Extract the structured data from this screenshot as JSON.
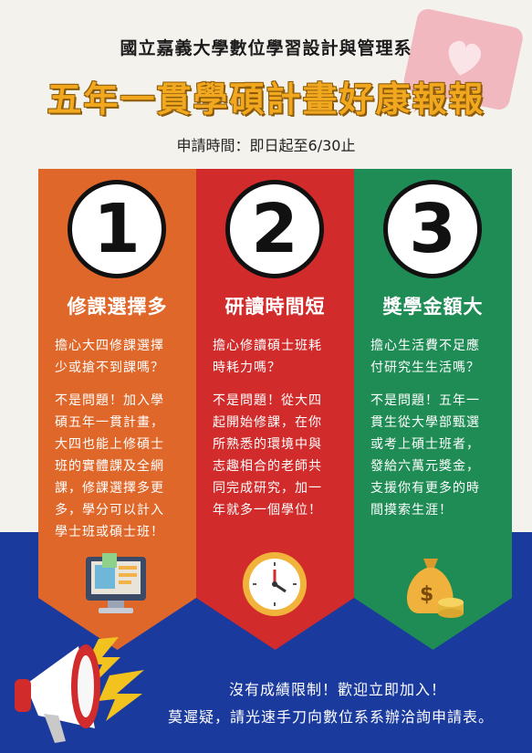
{
  "header": {
    "department": "國立嘉義大學數位學習設計與管理系",
    "title": "五年一貫學碩計畫好康報報",
    "period": "申請時間：即日起至6/30止"
  },
  "colors": {
    "orange": "#e0672a",
    "red": "#d12b2b",
    "green": "#1f8c56",
    "blue": "#1a3a9e",
    "title_yellow": "#f2a81e"
  },
  "columns": [
    {
      "number": "1",
      "title": "修課選擇多",
      "question": "擔心大四修課選擇\n少或搶不到課嗎？",
      "answer": "不是問題！加入學\n碩五年一貫計畫，\n大四也能上修碩士\n班的實體課及全網\n課，修課選擇多更\n多，學分可以計入\n學士班或碩士班！",
      "icon": "computer-icon"
    },
    {
      "number": "2",
      "title": "研讀時間短",
      "question": "擔心修讀碩士班耗\n時耗力嗎？",
      "answer": "不是問題！從大四\n起開始修課，在你\n所熟悉的環境中與\n志趣相合的老師共\n同完成研究，加一\n年就多一個學位！",
      "icon": "clock-icon"
    },
    {
      "number": "3",
      "title": "獎學金額大",
      "question": "擔心生活費不足應\n付研究生生活嗎？",
      "answer": "不是問題！五年一\n貫生從大學部甄選\n或考上碩士班者，\n發給六萬元獎金，\n支援你有更多的時\n間摸索生涯！",
      "icon": "money-bag-icon"
    }
  ],
  "footer": {
    "line1": "沒有成績限制！歡迎立即加入！",
    "line2": "莫遲疑，請光速手刀向數位系系辦洽詢申請表。"
  }
}
